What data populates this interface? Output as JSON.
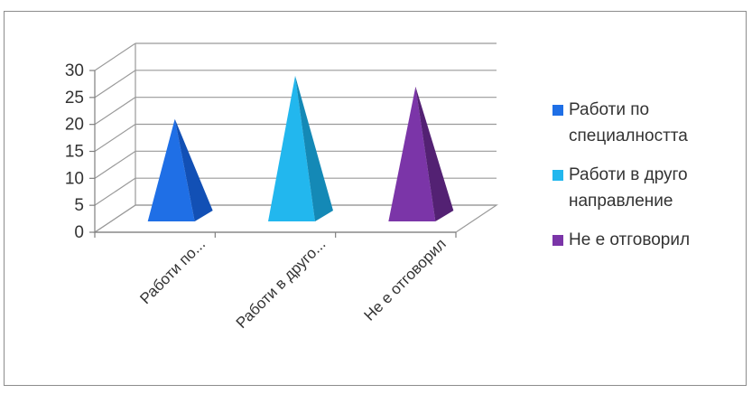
{
  "chart_data": {
    "type": "bar",
    "style": "3d-pyramid",
    "categories": [
      "Работи по...",
      "Работи в друго...",
      "Не е отговорил"
    ],
    "values": [
      19,
      27,
      25
    ],
    "ylim": [
      0,
      30
    ],
    "yticks": [
      "0",
      "5",
      "10",
      "15",
      "20",
      "25",
      "30"
    ],
    "grid": true,
    "legend_position": "right",
    "legend": [
      {
        "label": "Работи по специалността",
        "color": "#1f6fe6"
      },
      {
        "label": "Работи в друго направление",
        "color": "#22b7ee"
      },
      {
        "label": "Не е отговорил",
        "color": "#7b35a8"
      }
    ],
    "colors": {
      "series": [
        "#1f6fe6",
        "#22b7ee",
        "#7b35a8"
      ],
      "series_dark": [
        "#1250b5",
        "#1489b6",
        "#532173"
      ]
    }
  }
}
